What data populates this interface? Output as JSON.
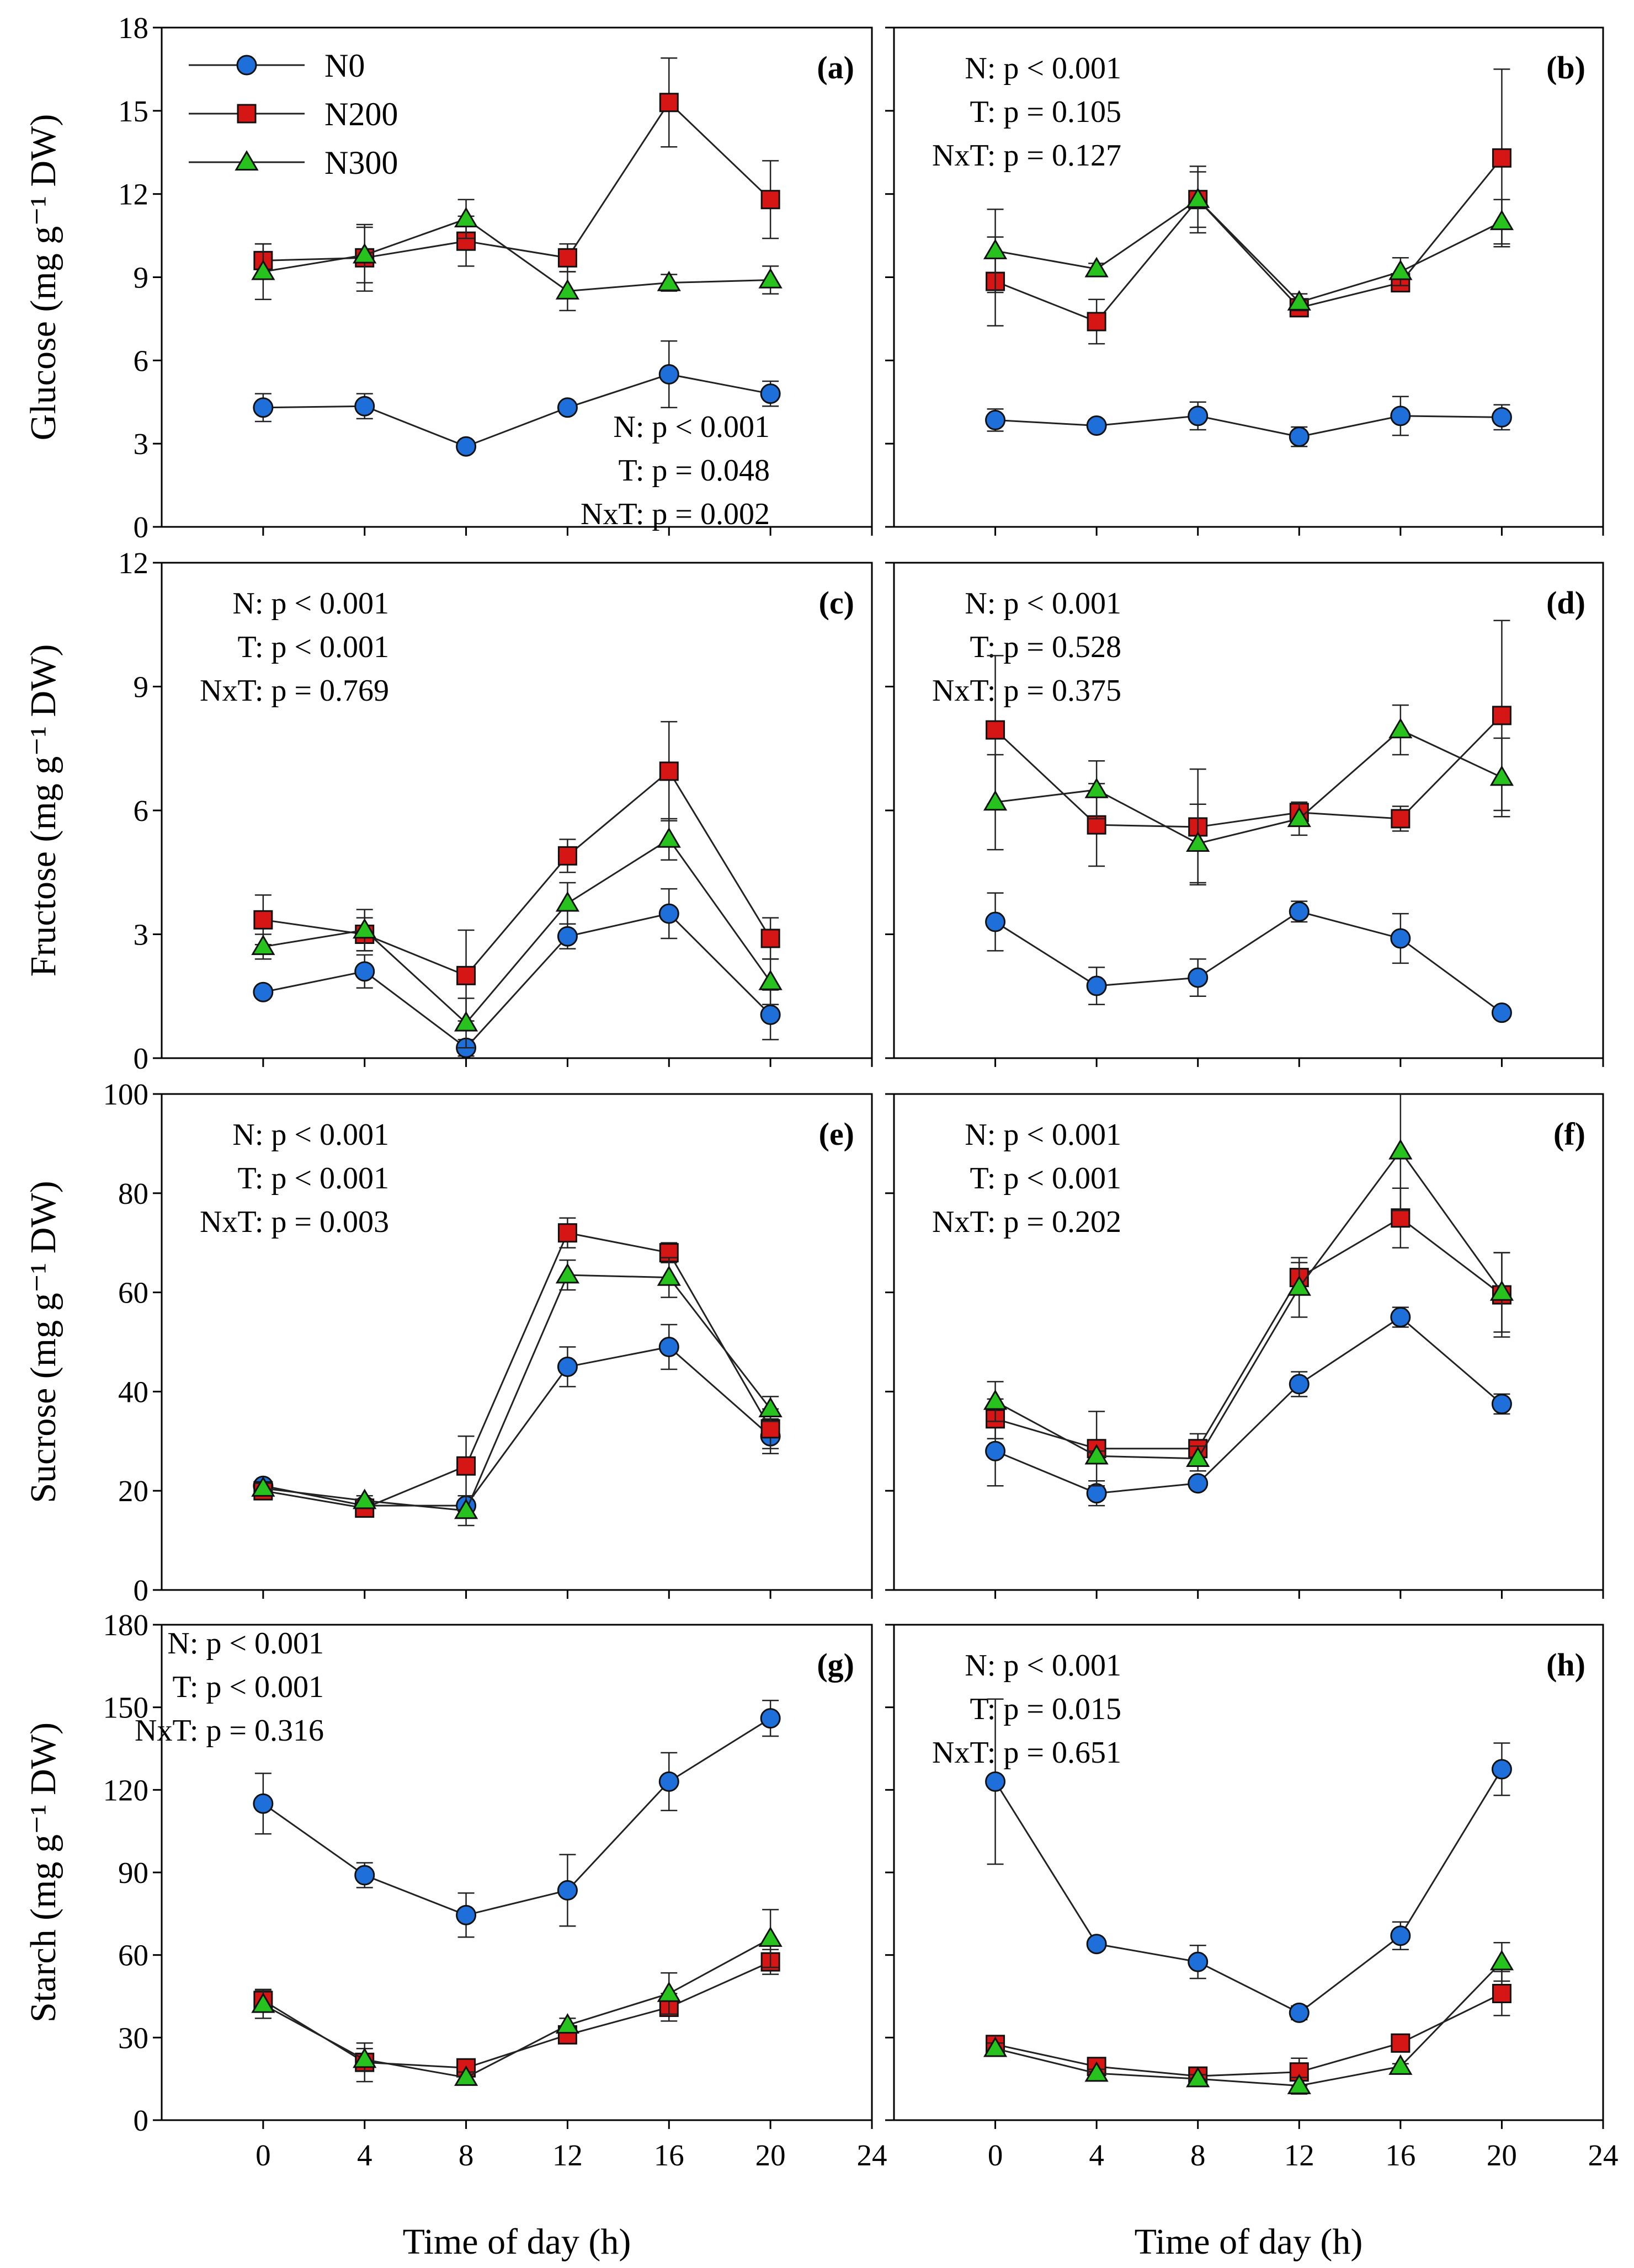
{
  "figure": {
    "xlabel": "Time of day (h)",
    "legend": [
      {
        "name": "N0",
        "color": "#1e6fd9",
        "marker": "circle"
      },
      {
        "name": "N200",
        "color": "#d61515",
        "marker": "square"
      },
      {
        "name": "N300",
        "color": "#27c21e",
        "marker": "triangle"
      }
    ]
  },
  "chart_data": [
    {
      "panel": "(a)",
      "type": "line",
      "ylabel": "Glucose (mg g⁻¹ DW)",
      "x": [
        0,
        4,
        8,
        12,
        16,
        20
      ],
      "xlim": [
        -4,
        24
      ],
      "xticks": [
        0,
        4,
        8,
        12,
        16,
        20,
        24
      ],
      "ylim": [
        0,
        18
      ],
      "yticks": [
        0,
        3,
        6,
        9,
        12,
        15,
        18
      ],
      "stats": [
        "N: p < 0.001",
        "T: p = 0.048",
        "NxT: p = 0.002"
      ],
      "stats_placement": "bottom-right",
      "series": [
        {
          "name": "N0",
          "values": [
            4.3,
            4.35,
            2.9,
            4.3,
            5.5,
            4.8
          ],
          "errors": [
            0.5,
            0.45,
            0.15,
            0.2,
            1.2,
            0.45
          ]
        },
        {
          "name": "N200",
          "values": [
            9.6,
            9.7,
            10.3,
            9.7,
            15.3,
            11.8
          ],
          "errors": [
            0.6,
            1.2,
            0.9,
            0.5,
            1.6,
            1.4
          ]
        },
        {
          "name": "N300",
          "values": [
            9.2,
            9.8,
            11.1,
            8.5,
            8.8,
            8.9
          ],
          "errors": [
            1.0,
            1.0,
            0.7,
            0.7,
            0.3,
            0.5
          ]
        }
      ]
    },
    {
      "panel": "(b)",
      "type": "line",
      "ylabel": "",
      "x": [
        0,
        4,
        8,
        12,
        16,
        20
      ],
      "xlim": [
        -4,
        24
      ],
      "xticks": [
        0,
        4,
        8,
        12,
        16,
        20,
        24
      ],
      "ylim": [
        0,
        18
      ],
      "yticks": [
        0,
        3,
        6,
        9,
        12,
        15,
        18
      ],
      "stats": [
        "N: p < 0.001",
        "T: p = 0.105",
        "NxT: p = 0.127"
      ],
      "stats_placement": "top-left",
      "series": [
        {
          "name": "N0",
          "values": [
            3.85,
            3.65,
            4.0,
            3.25,
            4.0,
            3.95
          ],
          "errors": [
            0.4,
            0.2,
            0.5,
            0.35,
            0.7,
            0.45
          ]
        },
        {
          "name": "N200",
          "values": [
            8.85,
            7.4,
            11.8,
            7.9,
            8.8,
            13.3
          ],
          "errors": [
            1.6,
            0.8,
            1.2,
            0.3,
            0.3,
            3.2
          ]
        },
        {
          "name": "N300",
          "values": [
            9.95,
            9.3,
            11.8,
            8.1,
            9.2,
            11.0
          ],
          "errors": [
            1.5,
            0.2,
            1.0,
            0.3,
            0.5,
            0.8
          ]
        }
      ]
    },
    {
      "panel": "(c)",
      "type": "line",
      "ylabel": "Fructose (mg g⁻¹ DW)",
      "x": [
        0,
        4,
        8,
        12,
        16,
        20
      ],
      "xlim": [
        -4,
        24
      ],
      "xticks": [
        0,
        4,
        8,
        12,
        16,
        20,
        24
      ],
      "ylim": [
        0,
        12
      ],
      "yticks": [
        0,
        3,
        6,
        9,
        12
      ],
      "stats": [
        "N: p < 0.001",
        "T: p < 0.001",
        "NxT: p = 0.769"
      ],
      "stats_placement": "top-left",
      "series": [
        {
          "name": "N0",
          "values": [
            1.6,
            2.1,
            0.25,
            2.95,
            3.5,
            1.05
          ],
          "errors": [
            0.1,
            0.4,
            0.2,
            0.3,
            0.6,
            0.6
          ]
        },
        {
          "name": "N200",
          "values": [
            3.35,
            3.0,
            2.0,
            4.9,
            6.95,
            2.9
          ],
          "errors": [
            0.6,
            0.4,
            1.1,
            0.4,
            1.2,
            0.5
          ]
        },
        {
          "name": "N300",
          "values": [
            2.7,
            3.1,
            0.85,
            3.75,
            5.3,
            1.85
          ],
          "errors": [
            0.3,
            0.5,
            0.6,
            0.5,
            0.5,
            0.55
          ]
        }
      ]
    },
    {
      "panel": "(d)",
      "type": "line",
      "ylabel": "",
      "x": [
        0,
        4,
        8,
        12,
        16,
        20
      ],
      "xlim": [
        -4,
        24
      ],
      "xticks": [
        0,
        4,
        8,
        12,
        16,
        20,
        24
      ],
      "ylim": [
        0,
        12
      ],
      "yticks": [
        0,
        3,
        6,
        9,
        12
      ],
      "stats": [
        "N: p < 0.001",
        "T: p = 0.528",
        "NxT: p = 0.375"
      ],
      "stats_placement": "top-left",
      "series": [
        {
          "name": "N0",
          "values": [
            3.3,
            1.75,
            1.95,
            3.55,
            2.9,
            1.1
          ],
          "errors": [
            0.7,
            0.45,
            0.45,
            0.25,
            0.6,
            0.1
          ]
        },
        {
          "name": "N200",
          "values": [
            7.95,
            5.65,
            5.6,
            5.95,
            5.8,
            8.3
          ],
          "errors": [
            1.8,
            1.0,
            1.4,
            0.2,
            0.3,
            2.3
          ]
        },
        {
          "name": "N300",
          "values": [
            6.2,
            6.5,
            5.2,
            5.8,
            7.95,
            6.8
          ],
          "errors": [
            1.15,
            0.7,
            0.95,
            0.4,
            0.6,
            0.95
          ]
        }
      ]
    },
    {
      "panel": "(e)",
      "type": "line",
      "ylabel": "Sucrose (mg g⁻¹ DW)",
      "x": [
        0,
        4,
        8,
        12,
        16,
        20
      ],
      "xlim": [
        -4,
        24
      ],
      "xticks": [
        0,
        4,
        8,
        12,
        16,
        20,
        24
      ],
      "ylim": [
        0,
        100
      ],
      "yticks": [
        0,
        20,
        40,
        60,
        80,
        100
      ],
      "stats": [
        "N: p < 0.001",
        "T: p < 0.001",
        "NxT: p = 0.003"
      ],
      "stats_placement": "top-left",
      "series": [
        {
          "name": "N0",
          "values": [
            21.0,
            17.0,
            17.0,
            45.0,
            49.0,
            31.0
          ],
          "errors": [
            1.0,
            1.0,
            2.0,
            4.0,
            4.5,
            3.5
          ]
        },
        {
          "name": "N200",
          "values": [
            20.0,
            16.5,
            25.0,
            72.0,
            68.0,
            32.5
          ],
          "errors": [
            1.0,
            1.0,
            6.0,
            3.0,
            2.0,
            4.0
          ]
        },
        {
          "name": "N300",
          "values": [
            20.5,
            18.0,
            16.0,
            63.5,
            63.0,
            36.5
          ],
          "errors": [
            1.0,
            1.0,
            3.0,
            3.0,
            4.0,
            2.5
          ]
        }
      ]
    },
    {
      "panel": "(f)",
      "type": "line",
      "ylabel": "",
      "x": [
        0,
        4,
        8,
        12,
        16,
        20
      ],
      "xlim": [
        -4,
        24
      ],
      "xticks": [
        0,
        4,
        8,
        12,
        16,
        20,
        24
      ],
      "ylim": [
        0,
        100
      ],
      "yticks": [
        0,
        20,
        40,
        60,
        80,
        100
      ],
      "stats": [
        "N: p < 0.001",
        "T: p < 0.001",
        "NxT: p = 0.202"
      ],
      "stats_placement": "top-left",
      "series": [
        {
          "name": "N0",
          "values": [
            28.0,
            19.5,
            21.5,
            41.5,
            55.0,
            37.5
          ],
          "errors": [
            7.0,
            2.5,
            1.0,
            2.5,
            2.0,
            2.0
          ]
        },
        {
          "name": "N200",
          "values": [
            34.5,
            28.5,
            28.5,
            63.0,
            75.0,
            59.5
          ],
          "errors": [
            4.0,
            7.5,
            3.0,
            3.0,
            6.0,
            8.5
          ]
        },
        {
          "name": "N300",
          "values": [
            38.0,
            27.0,
            26.5,
            61.0,
            88.5,
            60.0
          ],
          "errors": [
            4.0,
            1.0,
            2.5,
            6.0,
            12.0,
            8.0
          ]
        }
      ]
    },
    {
      "panel": "(g)",
      "type": "line",
      "ylabel": "Starch (mg g⁻¹ DW)",
      "x": [
        0,
        4,
        8,
        12,
        16,
        20
      ],
      "xlim": [
        -4,
        24
      ],
      "xticks": [
        0,
        4,
        8,
        12,
        16,
        20,
        24
      ],
      "ylim": [
        0,
        180
      ],
      "yticks": [
        0,
        30,
        60,
        90,
        120,
        150,
        180
      ],
      "stats": [
        "N: p < 0.001",
        "T: p < 0.001",
        "NxT: p = 0.316"
      ],
      "stats_placement": "top-left",
      "series": [
        {
          "name": "N0",
          "values": [
            115.0,
            89.0,
            74.5,
            83.5,
            123.0,
            146.0
          ],
          "errors": [
            11.0,
            4.5,
            8.0,
            13.0,
            10.5,
            6.5
          ]
        },
        {
          "name": "N200",
          "values": [
            43.5,
            21.0,
            19.0,
            31.0,
            41.0,
            57.5
          ],
          "errors": [
            4.0,
            7.0,
            2.0,
            2.0,
            5.0,
            4.5
          ]
        },
        {
          "name": "N300",
          "values": [
            42.0,
            22.0,
            15.5,
            34.5,
            46.0,
            66.0
          ],
          "errors": [
            5.0,
            4.0,
            2.0,
            2.5,
            7.5,
            10.5
          ]
        }
      ]
    },
    {
      "panel": "(h)",
      "type": "line",
      "ylabel": "",
      "x": [
        0,
        4,
        8,
        12,
        16,
        20
      ],
      "xlim": [
        -4,
        24
      ],
      "xticks": [
        0,
        4,
        8,
        12,
        16,
        20,
        24
      ],
      "ylim": [
        0,
        180
      ],
      "yticks": [
        0,
        30,
        60,
        90,
        120,
        150,
        180
      ],
      "stats": [
        "N: p < 0.001",
        "T: p = 0.015",
        "NxT: p = 0.651"
      ],
      "stats_placement": "top-left",
      "series": [
        {
          "name": "N0",
          "values": [
            123.0,
            64.0,
            57.5,
            39.0,
            67.0,
            127.5
          ],
          "errors": [
            30.0,
            2.0,
            6.0,
            2.5,
            5.0,
            9.5
          ]
        },
        {
          "name": "N200",
          "values": [
            27.5,
            19.5,
            16.0,
            17.5,
            28.0,
            46.0
          ],
          "errors": [
            2.5,
            2.0,
            2.0,
            5.0,
            2.0,
            8.0
          ]
        },
        {
          "name": "N300",
          "values": [
            26.0,
            17.0,
            15.0,
            12.5,
            19.5,
            57.5
          ],
          "errors": [
            2.0,
            1.5,
            1.5,
            3.0,
            1.0,
            7.0
          ]
        }
      ]
    }
  ]
}
